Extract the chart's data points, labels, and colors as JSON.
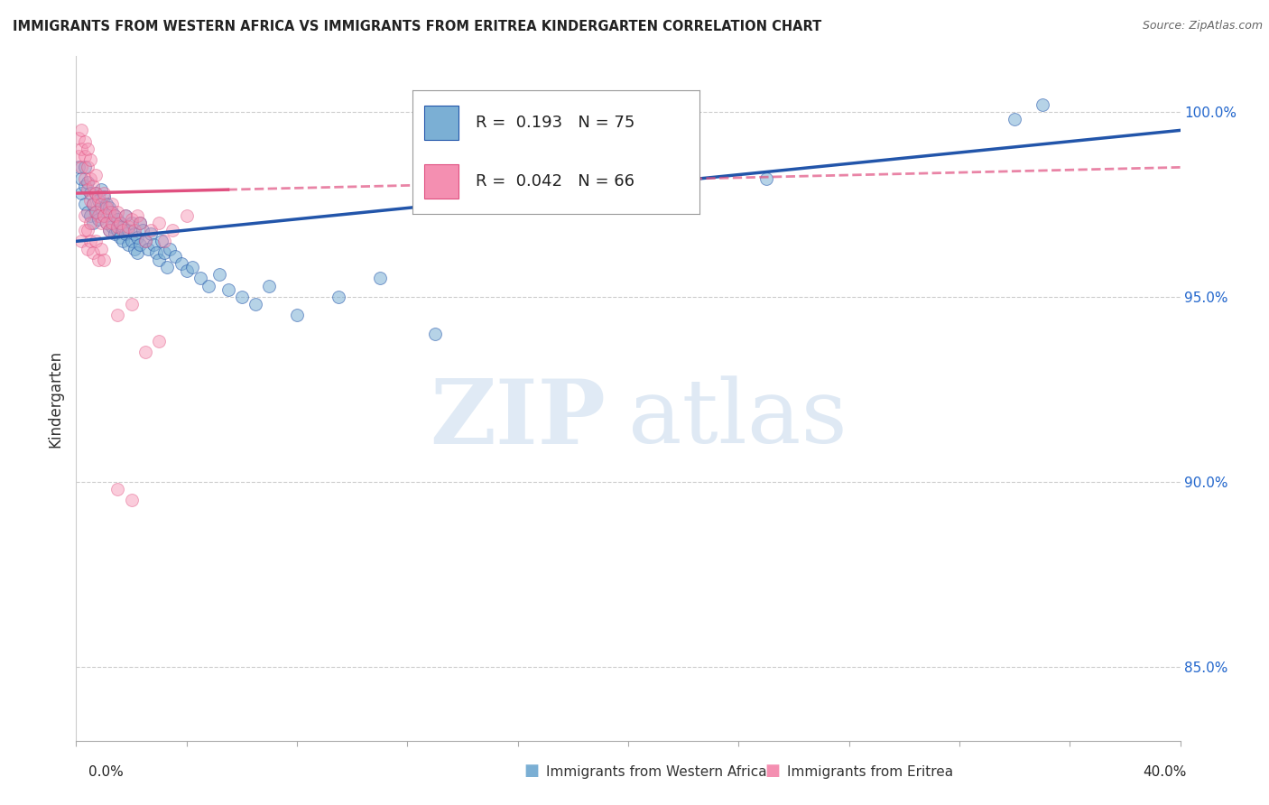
{
  "title": "IMMIGRANTS FROM WESTERN AFRICA VS IMMIGRANTS FROM ERITREA KINDERGARTEN CORRELATION CHART",
  "source": "Source: ZipAtlas.com",
  "ylabel": "Kindergarten",
  "y_ticks": [
    85.0,
    90.0,
    95.0,
    100.0
  ],
  "y_tick_labels": [
    "85.0%",
    "90.0%",
    "95.0%",
    "100.0%"
  ],
  "x_range": [
    0.0,
    0.4
  ],
  "y_range": [
    83.0,
    101.5
  ],
  "blue_R": 0.193,
  "blue_N": 75,
  "pink_R": 0.042,
  "pink_N": 66,
  "blue_color": "#7BAFD4",
  "pink_color": "#F48FB1",
  "blue_line_color": "#2255AA",
  "pink_line_color": "#E05080",
  "watermark_zip": "ZIP",
  "watermark_atlas": "atlas",
  "legend_label_blue": "Immigrants from Western Africa",
  "legend_label_pink": "Immigrants from Eritrea",
  "blue_line_x0": 0.0,
  "blue_line_y0": 96.5,
  "blue_line_x1": 0.4,
  "blue_line_y1": 99.5,
  "pink_line_x0": 0.0,
  "pink_line_y0": 97.8,
  "pink_line_x1": 0.4,
  "pink_line_y1": 98.5,
  "blue_scatter_x": [
    0.001,
    0.002,
    0.002,
    0.003,
    0.003,
    0.003,
    0.004,
    0.004,
    0.005,
    0.005,
    0.006,
    0.006,
    0.007,
    0.007,
    0.008,
    0.008,
    0.009,
    0.009,
    0.01,
    0.01,
    0.011,
    0.011,
    0.012,
    0.012,
    0.013,
    0.013,
    0.014,
    0.014,
    0.015,
    0.015,
    0.016,
    0.016,
    0.017,
    0.017,
    0.018,
    0.018,
    0.019,
    0.019,
    0.02,
    0.02,
    0.021,
    0.021,
    0.022,
    0.022,
    0.023,
    0.023,
    0.024,
    0.025,
    0.026,
    0.027,
    0.028,
    0.029,
    0.03,
    0.031,
    0.032,
    0.033,
    0.034,
    0.036,
    0.038,
    0.04,
    0.042,
    0.045,
    0.048,
    0.052,
    0.055,
    0.06,
    0.065,
    0.07,
    0.08,
    0.095,
    0.11,
    0.13,
    0.25,
    0.34,
    0.35
  ],
  "blue_scatter_y": [
    98.5,
    97.8,
    98.2,
    97.5,
    98.0,
    98.5,
    97.3,
    98.1,
    97.2,
    97.8,
    97.0,
    97.5,
    97.3,
    97.8,
    97.1,
    97.6,
    97.4,
    97.9,
    97.2,
    97.7,
    97.0,
    97.5,
    96.8,
    97.4,
    96.9,
    97.3,
    96.7,
    97.2,
    96.8,
    97.1,
    96.6,
    97.0,
    96.5,
    96.9,
    96.7,
    97.2,
    96.4,
    96.8,
    96.5,
    97.0,
    96.3,
    96.7,
    96.2,
    96.6,
    96.4,
    97.0,
    96.8,
    96.5,
    96.3,
    96.7,
    96.4,
    96.2,
    96.0,
    96.5,
    96.2,
    95.8,
    96.3,
    96.1,
    95.9,
    95.7,
    95.8,
    95.5,
    95.3,
    95.6,
    95.2,
    95.0,
    94.8,
    95.3,
    94.5,
    95.0,
    95.5,
    94.0,
    98.2,
    99.8,
    100.2
  ],
  "pink_scatter_x": [
    0.001,
    0.001,
    0.002,
    0.002,
    0.002,
    0.003,
    0.003,
    0.003,
    0.004,
    0.004,
    0.004,
    0.005,
    0.005,
    0.005,
    0.006,
    0.006,
    0.007,
    0.007,
    0.007,
    0.008,
    0.008,
    0.009,
    0.009,
    0.01,
    0.01,
    0.011,
    0.011,
    0.012,
    0.012,
    0.013,
    0.013,
    0.014,
    0.015,
    0.015,
    0.016,
    0.017,
    0.018,
    0.019,
    0.02,
    0.021,
    0.022,
    0.023,
    0.025,
    0.027,
    0.03,
    0.032,
    0.035,
    0.04,
    0.002,
    0.003,
    0.003,
    0.004,
    0.004,
    0.005,
    0.005,
    0.006,
    0.007,
    0.008,
    0.009,
    0.01,
    0.015,
    0.02,
    0.025,
    0.03,
    0.015,
    0.02
  ],
  "pink_scatter_y": [
    98.8,
    99.3,
    98.5,
    99.0,
    99.5,
    98.2,
    98.8,
    99.2,
    97.9,
    98.5,
    99.0,
    97.6,
    98.2,
    98.7,
    97.5,
    98.0,
    97.3,
    97.8,
    98.3,
    97.2,
    97.7,
    97.0,
    97.5,
    97.2,
    97.8,
    97.0,
    97.4,
    96.8,
    97.3,
    97.0,
    97.5,
    97.2,
    96.9,
    97.3,
    97.0,
    96.8,
    97.2,
    96.9,
    97.1,
    96.8,
    97.2,
    97.0,
    96.5,
    96.8,
    97.0,
    96.5,
    96.8,
    97.2,
    96.5,
    96.8,
    97.2,
    96.3,
    96.8,
    96.5,
    97.0,
    96.2,
    96.5,
    96.0,
    96.3,
    96.0,
    94.5,
    94.8,
    93.5,
    93.8,
    89.8,
    89.5
  ]
}
